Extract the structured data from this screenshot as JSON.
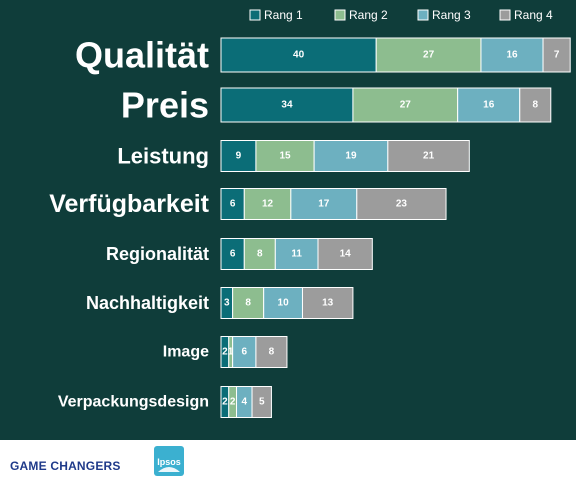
{
  "chart_data": {
    "type": "bar",
    "orientation": "horizontal",
    "stacked": true,
    "legend_position": "top-right",
    "grid": false,
    "categories": [
      "Qualität",
      "Preis",
      "Leistung",
      "Verfügbarkeit",
      "Regionalität",
      "Nachhaltigkeit",
      "Image",
      "Verpackungsdesign"
    ],
    "series": [
      {
        "name": "Rang 1",
        "color": "#0b6d77",
        "values": [
          40,
          34,
          9,
          6,
          6,
          3,
          2,
          2
        ],
        "labels": [
          "40",
          "34",
          "9",
          "6",
          "6",
          "3",
          "2",
          "2"
        ]
      },
      {
        "name": "Rang 2",
        "color": "#8dbd8f",
        "values": [
          27,
          27,
          15,
          12,
          8,
          8,
          1,
          2
        ],
        "labels": [
          "27",
          "27",
          "15",
          "12",
          "8",
          "8",
          "1",
          "2"
        ]
      },
      {
        "name": "Rang 3",
        "color": "#6db0c0",
        "values": [
          16,
          16,
          19,
          17,
          11,
          10,
          6,
          4
        ],
        "labels": [
          "16",
          "16",
          "19",
          "17",
          "11",
          "10",
          "6",
          "4"
        ]
      },
      {
        "name": "Rang 4",
        "color": "#9c9c9c",
        "values": [
          7,
          8,
          21,
          23,
          14,
          13,
          8,
          5
        ],
        "labels": [
          "7",
          "8",
          "21",
          "23",
          "14",
          "13",
          "8",
          "5"
        ]
      }
    ]
  },
  "footer": {
    "brand_text": "GAME CHANGERS",
    "logo_text": "Ipsos",
    "brand_color": "#1f3a8a",
    "logo_color": "#3bb0d0"
  }
}
